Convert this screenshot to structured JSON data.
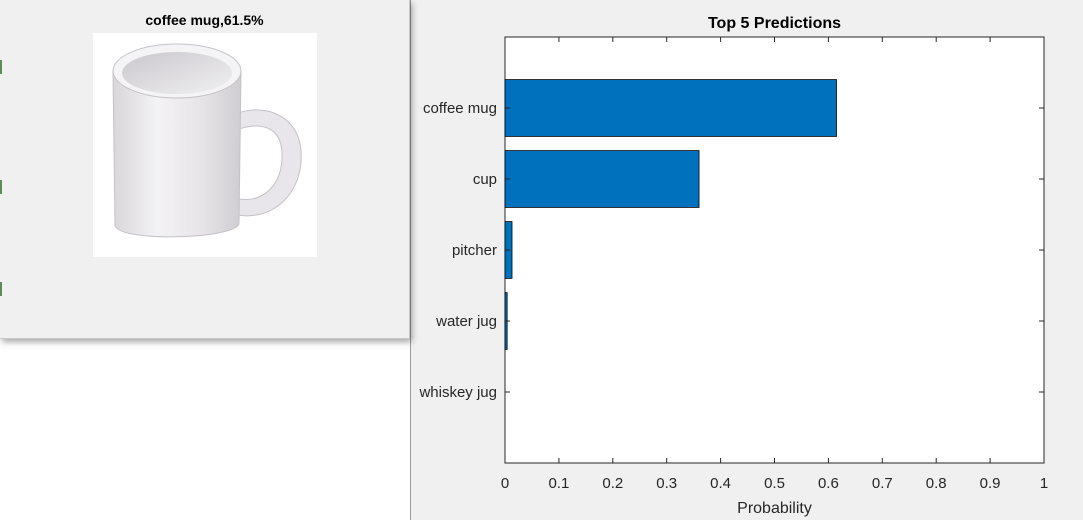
{
  "image_window": {
    "title": "coffee mug,61.5%",
    "image_subject": "white coffee mug"
  },
  "chart_data": {
    "type": "bar",
    "orientation": "horizontal",
    "title": "Top 5 Predictions",
    "xlabel": "Probability",
    "ylabel": "",
    "categories": [
      "coffee mug",
      "cup",
      "pitcher",
      "water jug",
      "whiskey jug"
    ],
    "values": [
      0.615,
      0.36,
      0.013,
      0.004,
      0.0
    ],
    "xlim": [
      0,
      1
    ],
    "xticks": [
      "0",
      "0.1",
      "0.2",
      "0.3",
      "0.4",
      "0.5",
      "0.6",
      "0.7",
      "0.8",
      "0.9",
      "1"
    ],
    "grid": false,
    "bar_color": "#0072bd"
  }
}
